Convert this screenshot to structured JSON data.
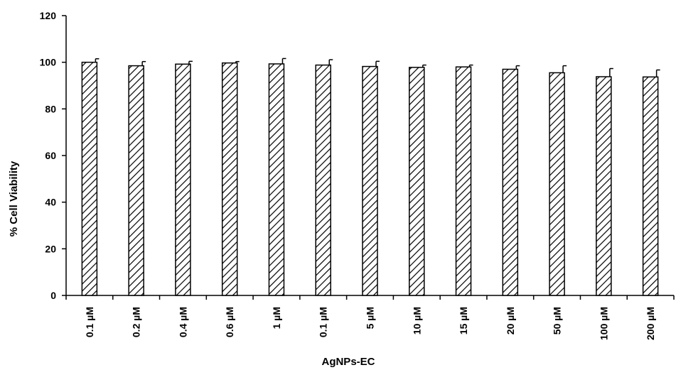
{
  "chart_data": {
    "type": "bar",
    "title": "",
    "xlabel": "AgNPs-EC",
    "ylabel": "% Cell Viability",
    "categories": [
      "0.1 µM",
      "0.2 µM",
      "0.4 µM",
      "0.6 µM",
      "1 µM",
      "0.1 µM",
      "5 µM",
      "10 µM",
      "15 µM",
      "20 µM",
      "50 µM",
      "100 µM",
      "200 µM"
    ],
    "values": [
      100,
      98.5,
      99.2,
      99.7,
      99.3,
      98.8,
      98.2,
      97.8,
      98.0,
      97.0,
      95.5,
      93.8,
      93.7
    ],
    "errors": [
      1.5,
      1.8,
      1.2,
      0.6,
      2.3,
      2.3,
      2.2,
      1.0,
      0.8,
      1.5,
      3.0,
      3.5,
      3.0
    ],
    "ylim": [
      0,
      120
    ],
    "yticks": [
      0,
      20,
      40,
      60,
      80,
      100,
      120
    ],
    "bar_fill": "diagonal-hatch",
    "bar_color": "#000000",
    "grid": false,
    "legend": "none"
  }
}
